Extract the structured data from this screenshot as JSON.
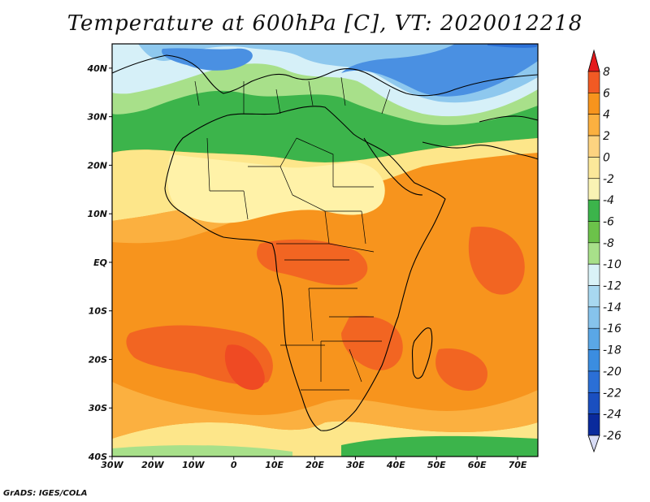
{
  "title": "Temperature at 600hPa [C], VT: 2020012218",
  "credit": "GrADS: IGES/COLA",
  "map": {
    "lon_range": [
      -30,
      75
    ],
    "lat_range": [
      -40,
      45
    ],
    "x_ticks": [
      "30W",
      "20W",
      "10W",
      "0",
      "10E",
      "20E",
      "30E",
      "40E",
      "50E",
      "60E",
      "70E"
    ],
    "y_ticks": [
      "40N",
      "30N",
      "20N",
      "10N",
      "EQ",
      "10S",
      "20S",
      "30S",
      "40S"
    ],
    "shading_colors": {
      "warm_dark": "#f26522",
      "warm": "#f7941d",
      "warm_light": "#fbb040",
      "yellow": "#fde68a",
      "light_yellow": "#fff2a8",
      "green_dark": "#3cb44b",
      "green": "#6cc24a",
      "green_light": "#a8e08a",
      "pale_blue": "#d6f0f8",
      "light_blue": "#8ec8ee",
      "blue": "#4a90e2",
      "blue_dark": "#2b6fd6"
    }
  },
  "colorbar": {
    "levels": [
      "8",
      "6",
      "4",
      "2",
      "0",
      "-2",
      "-4",
      "-6",
      "-8",
      "-10",
      "-12",
      "-14",
      "-16",
      "-18",
      "-20",
      "-22",
      "-24",
      "-26"
    ],
    "colors": [
      "#e41a1c",
      "#f15a24",
      "#f7941d",
      "#fbb040",
      "#fdd380",
      "#fbe89a",
      "#f9f3b4",
      "#3cb44b",
      "#6cc24a",
      "#a8e08a",
      "#d9f2f7",
      "#a8d8f0",
      "#86c3ec",
      "#5aa7e6",
      "#3b8de0",
      "#2b6fd6",
      "#1a4fc0",
      "#0a2a9c",
      "#0a1a6a"
    ]
  }
}
